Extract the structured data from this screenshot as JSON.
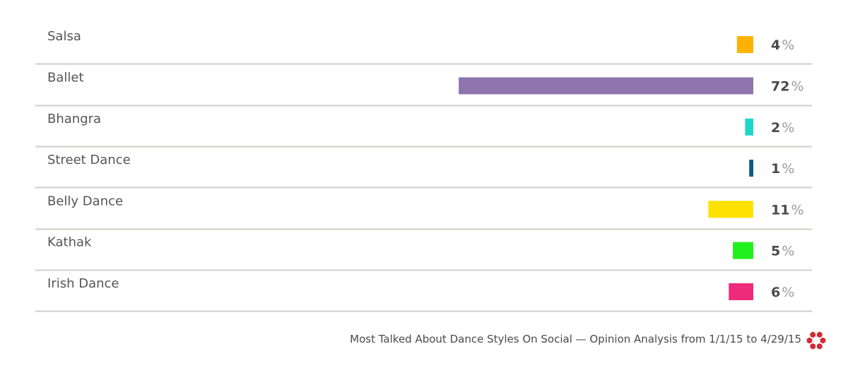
{
  "chart_data": {
    "type": "bar",
    "orientation": "horizontal",
    "categories": [
      "Salsa",
      "Ballet",
      "Bhangra",
      "Street Dance",
      "Belly Dance",
      "Kathak",
      "Irish Dance"
    ],
    "values": [
      4,
      72,
      2,
      1,
      11,
      5,
      6
    ],
    "value_suffix": "%",
    "colors": [
      "#FFB300",
      "#8E75AE",
      "#1ED5CB",
      "#0E5A80",
      "#FFE100",
      "#22F01E",
      "#EE2A7B"
    ],
    "separator_color": "#CFCFC5",
    "grid": false
  },
  "footer": {
    "caption": "Most Talked About Dance Styles On Social — Opinion Analysis from 1/1/15 to 4/29/15",
    "logo_icon": "red-flower-logo-icon",
    "logo_color": "#D12A36"
  }
}
